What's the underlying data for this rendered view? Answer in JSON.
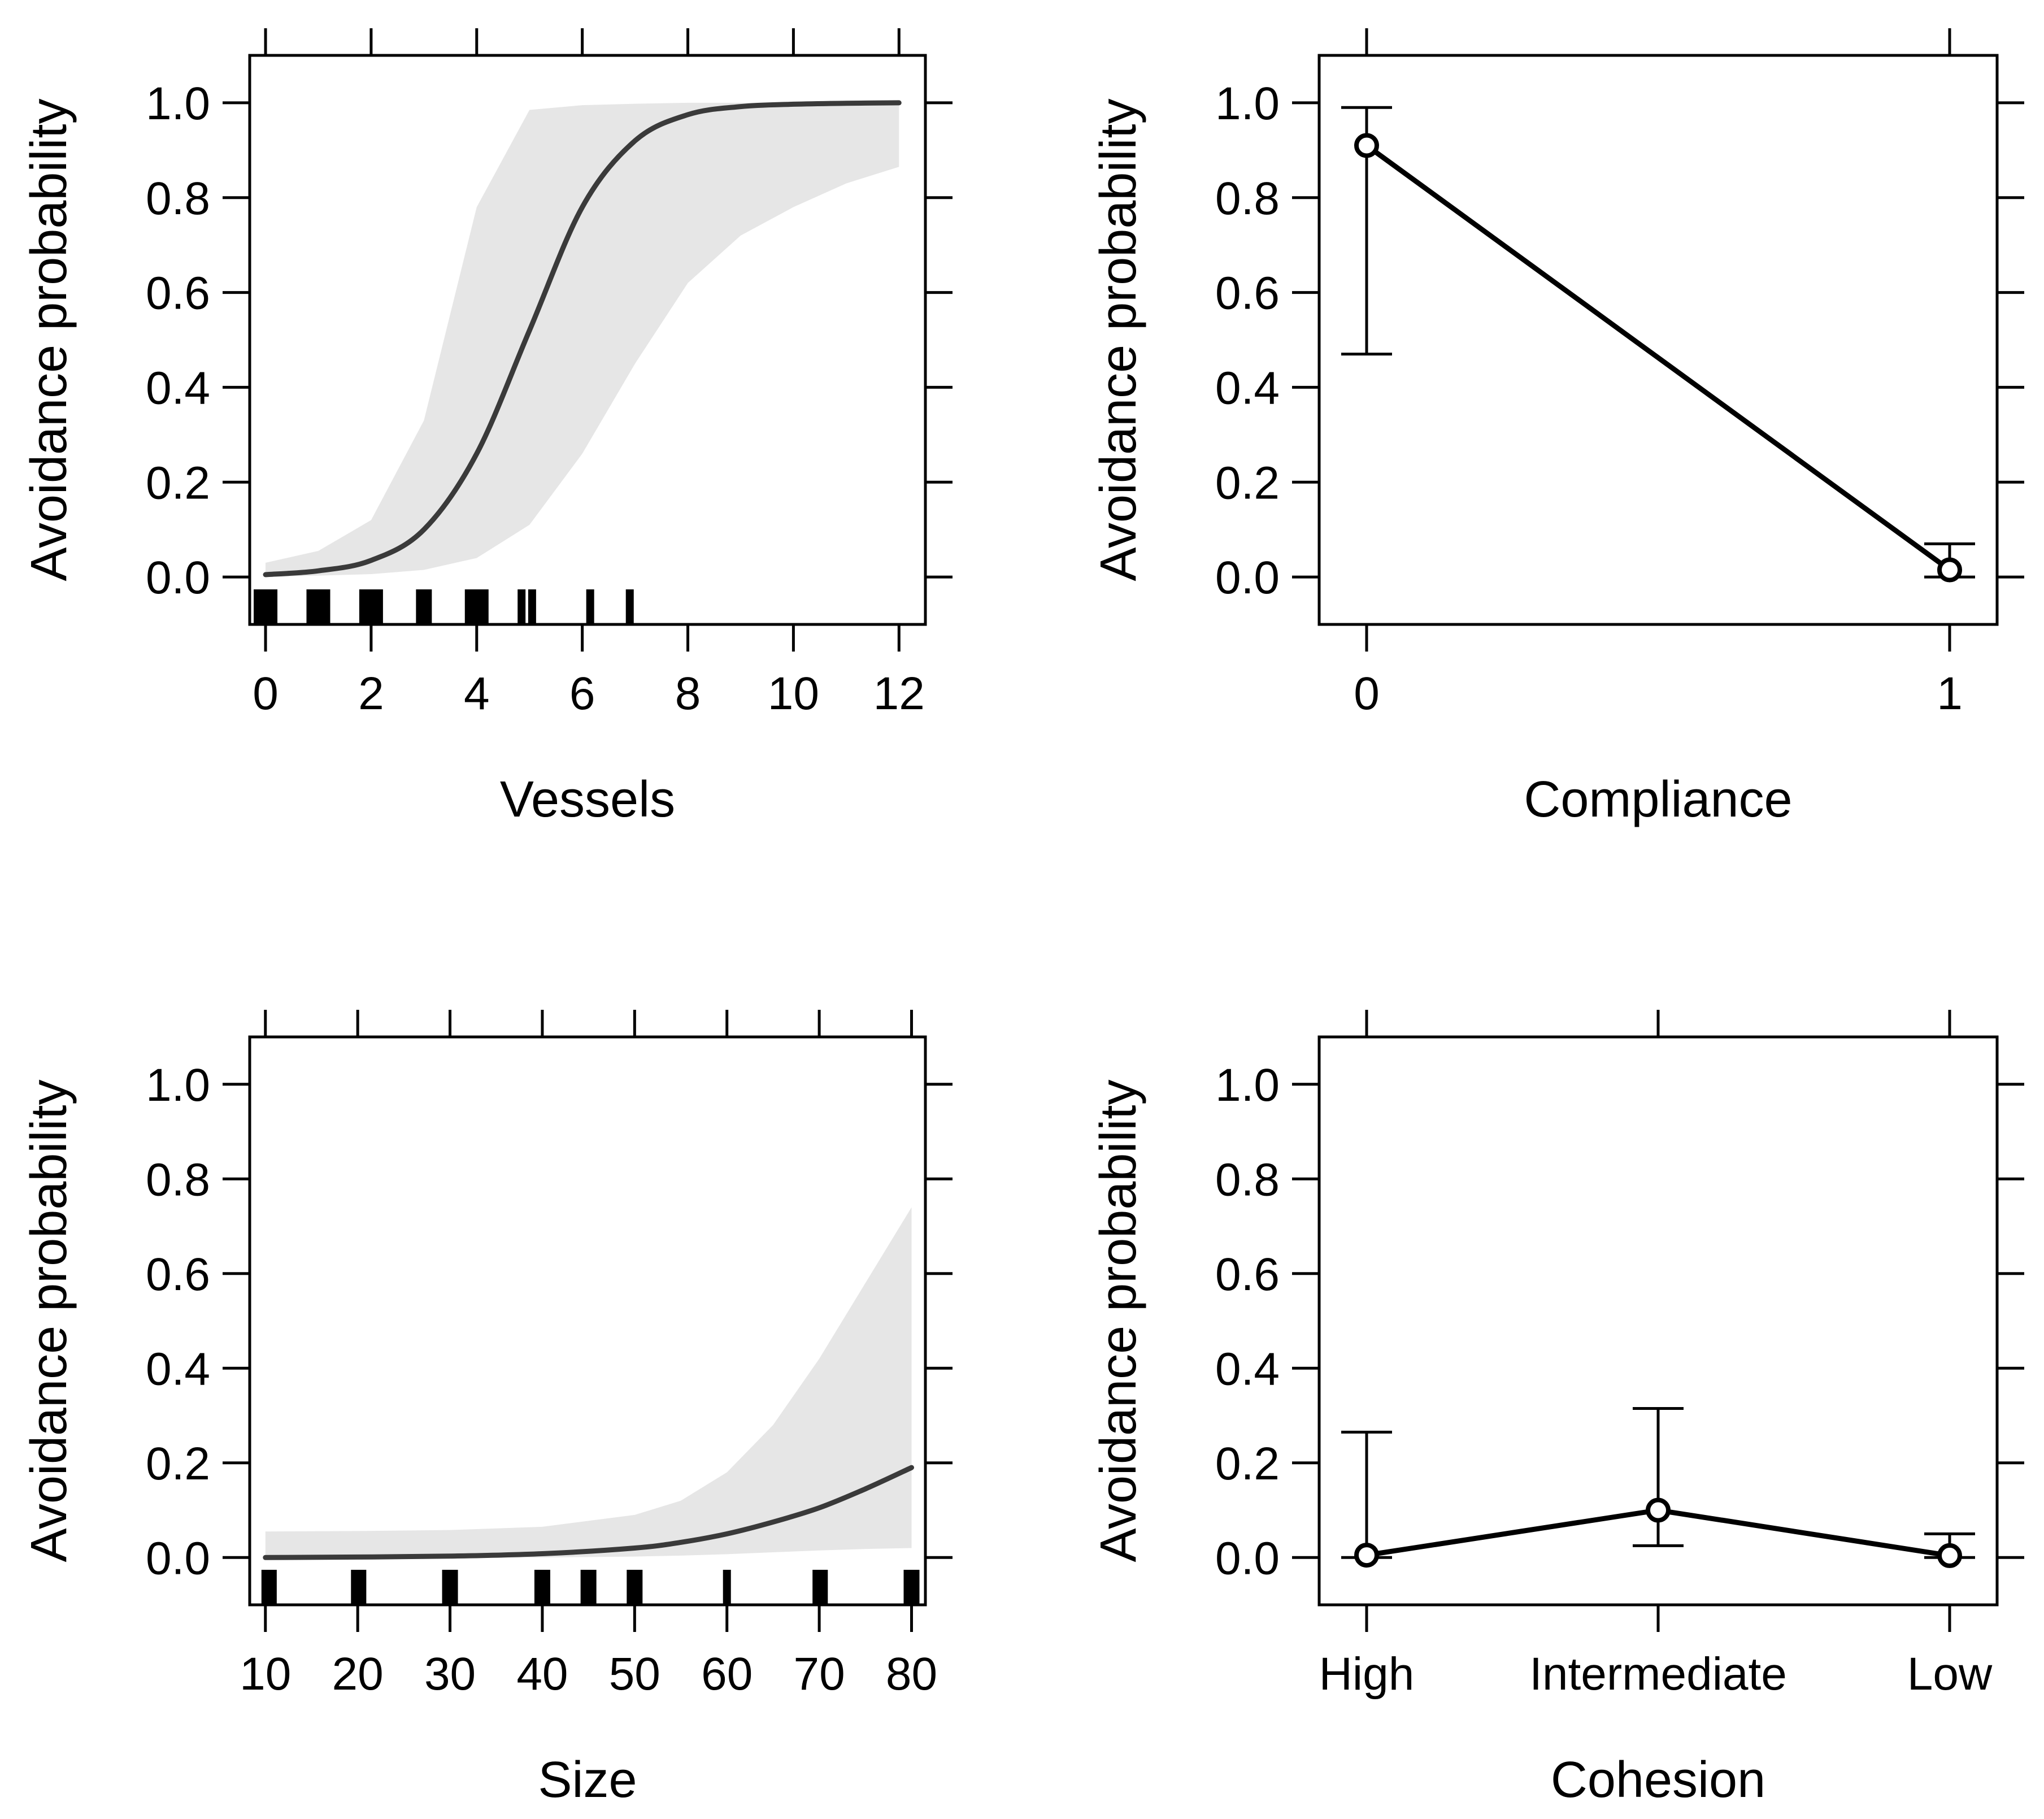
{
  "chart_data": [
    {
      "type": "line",
      "panel": "top-left",
      "xlabel": "Vessels",
      "ylabel": "Avoidance probability",
      "xlim": [
        -0.3,
        12.5
      ],
      "ylim": [
        -0.1,
        1.1
      ],
      "x_ticks": [
        0,
        2,
        4,
        6,
        8,
        10,
        12
      ],
      "y_ticks": [
        0.0,
        0.2,
        0.4,
        0.6,
        0.8,
        1.0
      ],
      "x_tick_labels": [
        "0",
        "2",
        "4",
        "6",
        "8",
        "10",
        "12"
      ],
      "y_tick_labels": [
        "0.0",
        "0.2",
        "0.4",
        "0.6",
        "0.8",
        "1.0"
      ],
      "x": [
        0,
        1,
        2,
        3,
        4,
        5,
        6,
        7,
        8,
        9,
        10,
        11,
        12
      ],
      "fit": [
        0.005,
        0.013,
        0.035,
        0.1,
        0.26,
        0.52,
        0.78,
        0.92,
        0.975,
        0.992,
        0.997,
        0.999,
        1.0
      ],
      "lower": [
        0.0,
        0.003,
        0.006,
        0.015,
        0.04,
        0.11,
        0.26,
        0.45,
        0.62,
        0.72,
        0.78,
        0.83,
        0.865
      ],
      "upper": [
        0.03,
        0.055,
        0.12,
        0.33,
        0.78,
        0.985,
        0.995,
        0.998,
        1.0,
        1.0,
        1.0,
        1.0,
        1.0
      ],
      "rug": [
        {
          "x": 0,
          "weight": 3
        },
        {
          "x": 1,
          "weight": 3
        },
        {
          "x": 2,
          "weight": 3
        },
        {
          "x": 3,
          "weight": 2
        },
        {
          "x": 4,
          "weight": 3
        },
        {
          "x": 4.85,
          "weight": 1
        },
        {
          "x": 5.05,
          "weight": 1
        },
        {
          "x": 6.15,
          "weight": 1
        },
        {
          "x": 6.9,
          "weight": 1
        }
      ],
      "band": "confidence interval (grey)",
      "colors": {
        "line": "#3a3a3a",
        "band": "#e6e6e6"
      }
    },
    {
      "type": "line",
      "panel": "top-right",
      "xlabel": "Compliance",
      "ylabel": "Avoidance probability",
      "ylim": [
        -0.1,
        1.1
      ],
      "categories": [
        "0",
        "1"
      ],
      "y_ticks": [
        0.0,
        0.2,
        0.4,
        0.6,
        0.8,
        1.0
      ],
      "y_tick_labels": [
        "0.0",
        "0.2",
        "0.4",
        "0.6",
        "0.8",
        "1.0"
      ],
      "values": [
        0.91,
        0.015
      ],
      "lower": [
        0.47,
        0.0
      ],
      "upper": [
        0.99,
        0.07
      ],
      "colors": {
        "line": "#000000"
      }
    },
    {
      "type": "line",
      "panel": "bottom-left",
      "xlabel": "Size",
      "ylabel": "Avoidance probability",
      "xlim": [
        8.3,
        81.5
      ],
      "ylim": [
        -0.1,
        1.1
      ],
      "x_ticks": [
        10,
        20,
        30,
        40,
        50,
        60,
        70,
        80
      ],
      "y_ticks": [
        0.0,
        0.2,
        0.4,
        0.6,
        0.8,
        1.0
      ],
      "x_tick_labels": [
        "10",
        "20",
        "30",
        "40",
        "50",
        "60",
        "70",
        "80"
      ],
      "y_tick_labels": [
        "0.0",
        "0.2",
        "0.4",
        "0.6",
        "0.8",
        "1.0"
      ],
      "x": [
        10,
        20,
        30,
        40,
        50,
        55,
        60,
        65,
        70,
        75,
        80
      ],
      "fit": [
        0.0,
        0.001,
        0.003,
        0.008,
        0.02,
        0.032,
        0.05,
        0.075,
        0.105,
        0.145,
        0.19
      ],
      "lower": [
        0.0,
        0.0,
        0.0,
        0.0,
        0.002,
        0.004,
        0.007,
        0.011,
        0.015,
        0.018,
        0.02
      ],
      "upper": [
        0.055,
        0.056,
        0.058,
        0.065,
        0.09,
        0.12,
        0.18,
        0.28,
        0.42,
        0.58,
        0.74
      ],
      "rug": [
        {
          "x": 10,
          "weight": 1
        },
        {
          "x": 10.8,
          "weight": 1
        },
        {
          "x": 19.7,
          "weight": 1
        },
        {
          "x": 20.5,
          "weight": 1
        },
        {
          "x": 30,
          "weight": 2
        },
        {
          "x": 40,
          "weight": 2
        },
        {
          "x": 45,
          "weight": 2
        },
        {
          "x": 50,
          "weight": 2
        },
        {
          "x": 60,
          "weight": 1
        },
        {
          "x": 69.7,
          "weight": 1
        },
        {
          "x": 70.5,
          "weight": 1
        },
        {
          "x": 80,
          "weight": 2
        }
      ],
      "band": "confidence interval (grey)",
      "colors": {
        "line": "#3a3a3a",
        "band": "#e6e6e6"
      }
    },
    {
      "type": "line",
      "panel": "bottom-right",
      "xlabel": "Cohesion",
      "ylabel": "Avoidance probability",
      "ylim": [
        -0.1,
        1.1
      ],
      "categories": [
        "High",
        "Intermediate",
        "Low"
      ],
      "y_ticks": [
        0.0,
        0.2,
        0.4,
        0.6,
        0.8,
        1.0
      ],
      "y_tick_labels": [
        "0.0",
        "0.2",
        "0.4",
        "0.6",
        "0.8",
        "1.0"
      ],
      "values": [
        0.005,
        0.1,
        0.004
      ],
      "lower": [
        0.0,
        0.025,
        0.0
      ],
      "upper": [
        0.265,
        0.315,
        0.05
      ],
      "colors": {
        "line": "#000000"
      }
    }
  ]
}
